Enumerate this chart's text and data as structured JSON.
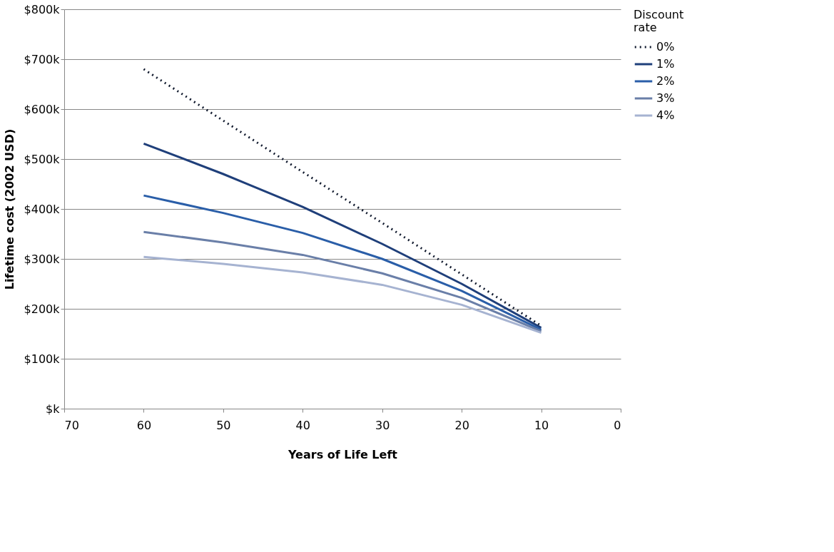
{
  "chart_data": {
    "type": "line",
    "xlabel": "Years of Life Left",
    "ylabel": "Lifetime cost (2002 USD)",
    "legend_title": "Discount rate",
    "x": [
      60,
      50,
      40,
      30,
      20,
      10
    ],
    "series": [
      {
        "name": "0%",
        "color": "#111a2e",
        "line_style": "dotted",
        "values": [
          680,
          577,
          474,
          372,
          269,
          166
        ]
      },
      {
        "name": "1%",
        "color": "#1f3f7a",
        "values": [
          531,
          470,
          404,
          330,
          250,
          162
        ]
      },
      {
        "name": "2%",
        "color": "#2a5ea8",
        "values": [
          427,
          392,
          352,
          300,
          236,
          158
        ]
      },
      {
        "name": "3%",
        "color": "#6a7fa8",
        "values": [
          354,
          333,
          308,
          271,
          222,
          155
        ]
      },
      {
        "name": "4%",
        "color": "#a6b3d1",
        "values": [
          304,
          290,
          273,
          248,
          208,
          152
        ]
      }
    ],
    "xlim": [
      70,
      0
    ],
    "xticks": [
      70,
      60,
      50,
      40,
      30,
      20,
      10,
      0
    ],
    "ylim": [
      0,
      800
    ],
    "yticks": [
      {
        "value": 0,
        "label": "$k"
      },
      {
        "value": 100,
        "label": "$100k"
      },
      {
        "value": 200,
        "label": "$200k"
      },
      {
        "value": 300,
        "label": "$300k"
      },
      {
        "value": 400,
        "label": "$400k"
      },
      {
        "value": 500,
        "label": "$500k"
      },
      {
        "value": 600,
        "label": "$600k"
      },
      {
        "value": 700,
        "label": "$700k"
      },
      {
        "value": 800,
        "label": "$800k"
      }
    ],
    "grid": "y",
    "legend": "right",
    "marker": "none",
    "line_style": "solid"
  }
}
